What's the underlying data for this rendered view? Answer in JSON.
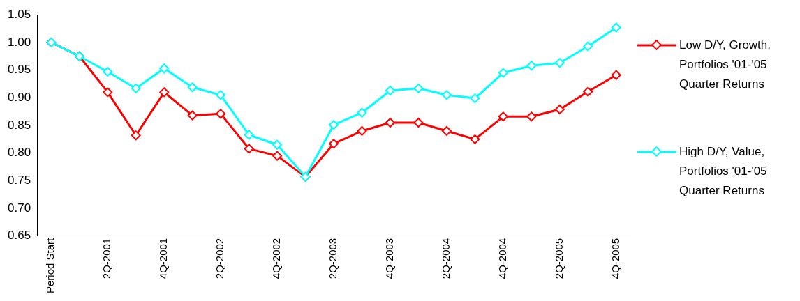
{
  "chart_data": {
    "type": "line",
    "categories": [
      "Period Start",
      null,
      "2Q-2001",
      null,
      "4Q-2001",
      null,
      "2Q-2002",
      null,
      "4Q-2002",
      null,
      "2Q-2003",
      null,
      "4Q-2003",
      null,
      "2Q-2004",
      null,
      "4Q-2004",
      null,
      "2Q-2005",
      null,
      "4Q-2005"
    ],
    "series": [
      {
        "name": "Low D/Y, Growth, Portfolios '01-'05 Quarter Returns",
        "color": "#ff0000",
        "values": [
          1.0,
          0.975,
          0.91,
          0.832,
          0.91,
          0.868,
          0.871,
          0.808,
          0.795,
          0.757,
          0.817,
          0.84,
          0.855,
          0.855,
          0.84,
          0.825,
          0.866,
          0.866,
          0.879,
          0.911,
          0.941
        ]
      },
      {
        "name": "High D/Y, Value, Portfolios '01-'05 Quarter Returns",
        "color": "#00ffff",
        "values": [
          1.0,
          0.975,
          0.947,
          0.917,
          0.953,
          0.919,
          0.905,
          0.833,
          0.815,
          0.757,
          0.851,
          0.873,
          0.913,
          0.917,
          0.905,
          0.899,
          0.945,
          0.958,
          0.963,
          0.993,
          1.027
        ]
      }
    ],
    "ylim": [
      0.65,
      1.05
    ],
    "yticks": [
      0.65,
      {
        "value": 0.7,
        "label": "0.70"
      },
      0.75,
      {
        "value": 0.8,
        "label": "0.80"
      },
      0.85,
      {
        "value": 0.9,
        "label": "0.90"
      },
      0.95,
      {
        "value": 1.0,
        "label": "1.00"
      },
      1.05
    ],
    "grid": false,
    "legend": "right",
    "marker": "diamond",
    "line_style": "solid"
  }
}
